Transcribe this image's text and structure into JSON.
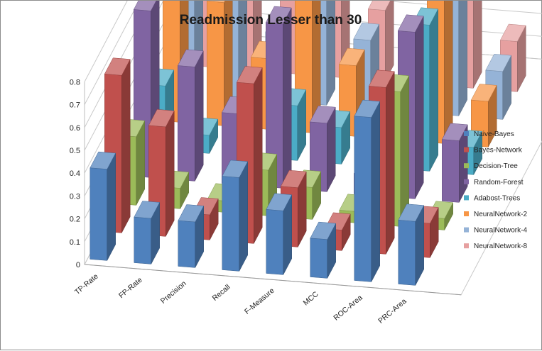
{
  "chart_data": {
    "type": "bar",
    "variant": "3d-clustered-column",
    "title": "Readmission Lesser than 30",
    "categories": [
      "TP-Rate",
      "FP-Rate",
      "Precision",
      "Recall",
      "F-Measure",
      "MCC",
      "ROC-Area",
      "PRC-Area"
    ],
    "y_ticks": [
      "0",
      "0.1",
      "0.2",
      "0.3",
      "0.4",
      "0.5",
      "0.6",
      "0.7",
      "0.8"
    ],
    "ylim": [
      0,
      0.8
    ],
    "grid": true,
    "legend_position": "right",
    "series": [
      {
        "name": "Naive-Bayes",
        "color": "#4f81bd",
        "values": [
          0.4,
          0.2,
          0.2,
          0.41,
          0.28,
          0.17,
          0.72,
          0.28
        ]
      },
      {
        "name": "Bayes-Network",
        "color": "#c0504d",
        "values": [
          0.69,
          0.48,
          0.11,
          0.7,
          0.26,
          0.09,
          0.73,
          0.15
        ]
      },
      {
        "name": "Decision-Tree",
        "color": "#9bbb59",
        "values": [
          0.3,
          0.09,
          0.05,
          0.2,
          0.14,
          0.05,
          0.59,
          0.05
        ]
      },
      {
        "name": "Random-Forest",
        "color": "#8064a2",
        "values": [
          0.73,
          0.5,
          0.31,
          0.72,
          0.3,
          0.09,
          0.73,
          0.27
        ]
      },
      {
        "name": "Adabost-Trees",
        "color": "#4bacc6",
        "values": [
          0.28,
          0.08,
          0.14,
          0.24,
          0.16,
          0.06,
          0.64,
          0.12
        ]
      },
      {
        "name": "NeuralNetwork-2",
        "color": "#f79646",
        "values": [
          0.77,
          0.54,
          0.31,
          0.76,
          0.31,
          0.09,
          0.72,
          0.2
        ]
      },
      {
        "name": "NeuralNetwork-4",
        "color": "#95b3d7",
        "values": [
          0.75,
          0.49,
          0.3,
          0.75,
          0.3,
          0.1,
          0.72,
          0.21
        ]
      },
      {
        "name": "NeuralNetwork-8",
        "color": "#e6a0a0",
        "values": [
          0.76,
          0.52,
          0.35,
          0.76,
          0.31,
          0.11,
          0.71,
          0.22
        ]
      }
    ]
  }
}
